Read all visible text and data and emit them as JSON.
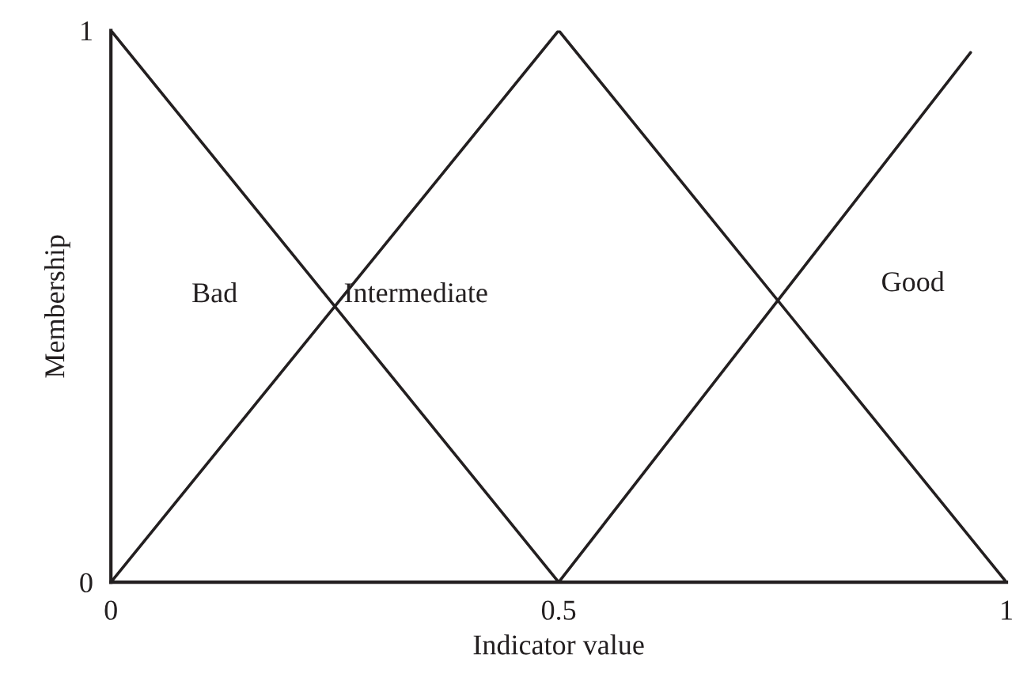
{
  "chart_data": {
    "type": "line",
    "xlabel": "Indicator value",
    "ylabel": "Membership",
    "xlim": [
      0,
      1
    ],
    "ylim": [
      0,
      1
    ],
    "xticks": [
      0,
      0.5,
      1
    ],
    "yticks": [
      0,
      1
    ],
    "grid": false,
    "legend": false,
    "marker": "none",
    "line_style": "solid",
    "series": [
      {
        "name": "Bad",
        "color": "#231f20",
        "x": [
          0,
          0.5
        ],
        "values": [
          1,
          0
        ]
      },
      {
        "name": "Intermediate",
        "color": "#231f20",
        "x": [
          0,
          0.5,
          1
        ],
        "values": [
          0,
          1,
          0
        ]
      },
      {
        "name": "Good",
        "color": "#231f20",
        "x": [
          0.5,
          0.96
        ],
        "values": [
          0,
          0.96
        ]
      }
    ]
  }
}
